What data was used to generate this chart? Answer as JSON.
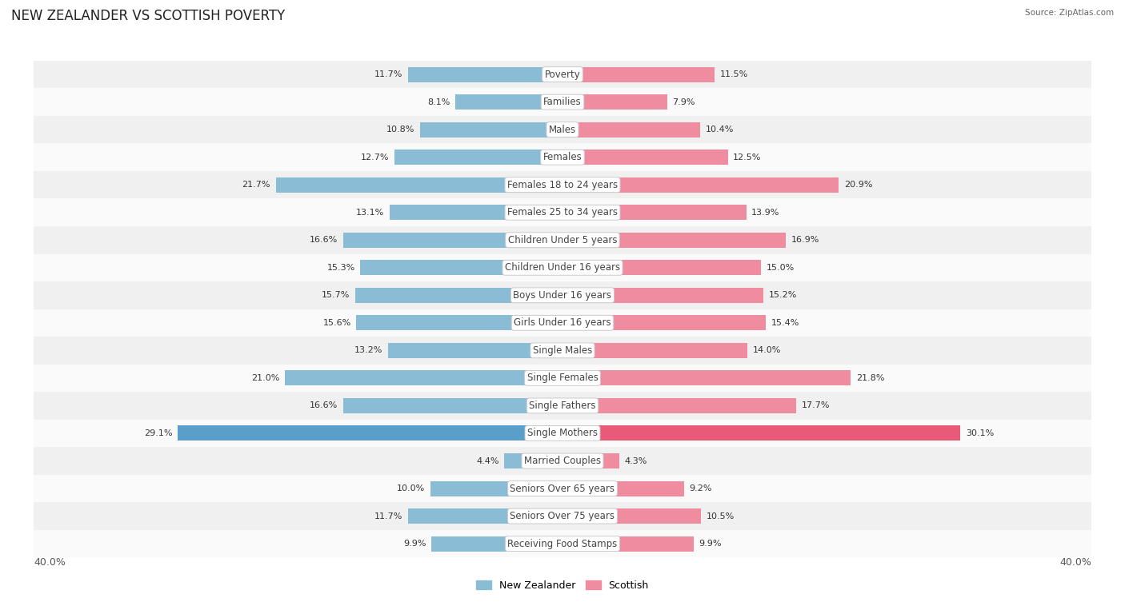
{
  "title": "NEW ZEALANDER VS SCOTTISH POVERTY",
  "source": "Source: ZipAtlas.com",
  "categories": [
    "Poverty",
    "Families",
    "Males",
    "Females",
    "Females 18 to 24 years",
    "Females 25 to 34 years",
    "Children Under 5 years",
    "Children Under 16 years",
    "Boys Under 16 years",
    "Girls Under 16 years",
    "Single Males",
    "Single Females",
    "Single Fathers",
    "Single Mothers",
    "Married Couples",
    "Seniors Over 65 years",
    "Seniors Over 75 years",
    "Receiving Food Stamps"
  ],
  "nz_values": [
    11.7,
    8.1,
    10.8,
    12.7,
    21.7,
    13.1,
    16.6,
    15.3,
    15.7,
    15.6,
    13.2,
    21.0,
    16.6,
    29.1,
    4.4,
    10.0,
    11.7,
    9.9
  ],
  "sc_values": [
    11.5,
    7.9,
    10.4,
    12.5,
    20.9,
    13.9,
    16.9,
    15.0,
    15.2,
    15.4,
    14.0,
    21.8,
    17.7,
    30.1,
    4.3,
    9.2,
    10.5,
    9.9
  ],
  "nz_color": "#8bbcd6",
  "sc_color": "#f08ca0",
  "nz_highlight": "#5a9fc9",
  "sc_highlight": "#e85a78",
  "bg_row_even": "#f0f0f0",
  "bg_row_odd": "#fafafa",
  "max_value": 40.0,
  "legend_nz": "New Zealander",
  "legend_sc": "Scottish",
  "fig_bg": "#ffffff",
  "title_fontsize": 12,
  "label_fontsize": 8.5,
  "value_fontsize": 8,
  "axis_fontsize": 9
}
